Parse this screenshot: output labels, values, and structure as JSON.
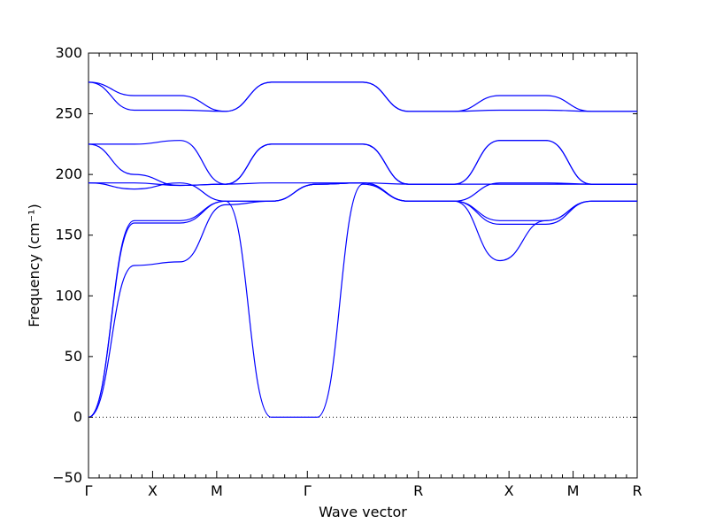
{
  "chart_data": {
    "type": "line",
    "xlabel": "Wave vector",
    "ylabel": "Frequency (cm⁻¹)",
    "ylim": [
      -50,
      300
    ],
    "yticks": [
      -50,
      0,
      50,
      100,
      150,
      200,
      250,
      300
    ],
    "grid": false,
    "colors": {
      "bands": "#0000ff",
      "axis": "#000000"
    },
    "kpath": [
      {
        "label": "Γ",
        "x": 0.0
      },
      {
        "label": "X",
        "x": 0.5
      },
      {
        "label": "M",
        "x": 1.0
      },
      {
        "label": "Γ",
        "x": 1.7071
      },
      {
        "label": "R",
        "x": 2.5731
      },
      {
        "label": "X",
        "x": 3.2802
      },
      {
        "label": "M",
        "x": 3.7802
      },
      {
        "label": "R",
        "x": 4.2802
      }
    ],
    "series": [
      {
        "values": [
          0,
          125,
          128,
          175,
          178,
          192,
          193,
          178,
          178,
          129,
          162,
          178,
          178
        ]
      },
      {
        "values": [
          0,
          160,
          160,
          178,
          178,
          192,
          193,
          178,
          178,
          159,
          159,
          178,
          178
        ]
      },
      {
        "values": [
          0,
          162,
          162,
          178,
          178,
          192,
          193,
          178,
          178,
          162,
          162,
          178,
          178
        ]
      },
      {
        "values": [
          193,
          188,
          193,
          178,
          0,
          0,
          192,
          178,
          178,
          193,
          193,
          192,
          192
        ]
      },
      {
        "values": [
          193,
          193,
          191,
          192,
          193,
          193,
          193,
          192,
          192,
          192,
          192,
          192,
          192
        ]
      },
      {
        "values": [
          225,
          225,
          228,
          192,
          225,
          225,
          225,
          192,
          192,
          228,
          228,
          192,
          192
        ]
      },
      {
        "values": [
          225,
          200,
          191,
          192,
          225,
          225,
          225,
          192,
          192,
          228,
          228,
          192,
          192
        ]
      },
      {
        "values": [
          276,
          265,
          265,
          252,
          276,
          276,
          276,
          252,
          252,
          265,
          265,
          252,
          252
        ]
      },
      {
        "values": [
          276,
          253,
          253,
          252,
          276,
          276,
          276,
          252,
          252,
          253,
          253,
          252,
          252
        ]
      }
    ]
  }
}
